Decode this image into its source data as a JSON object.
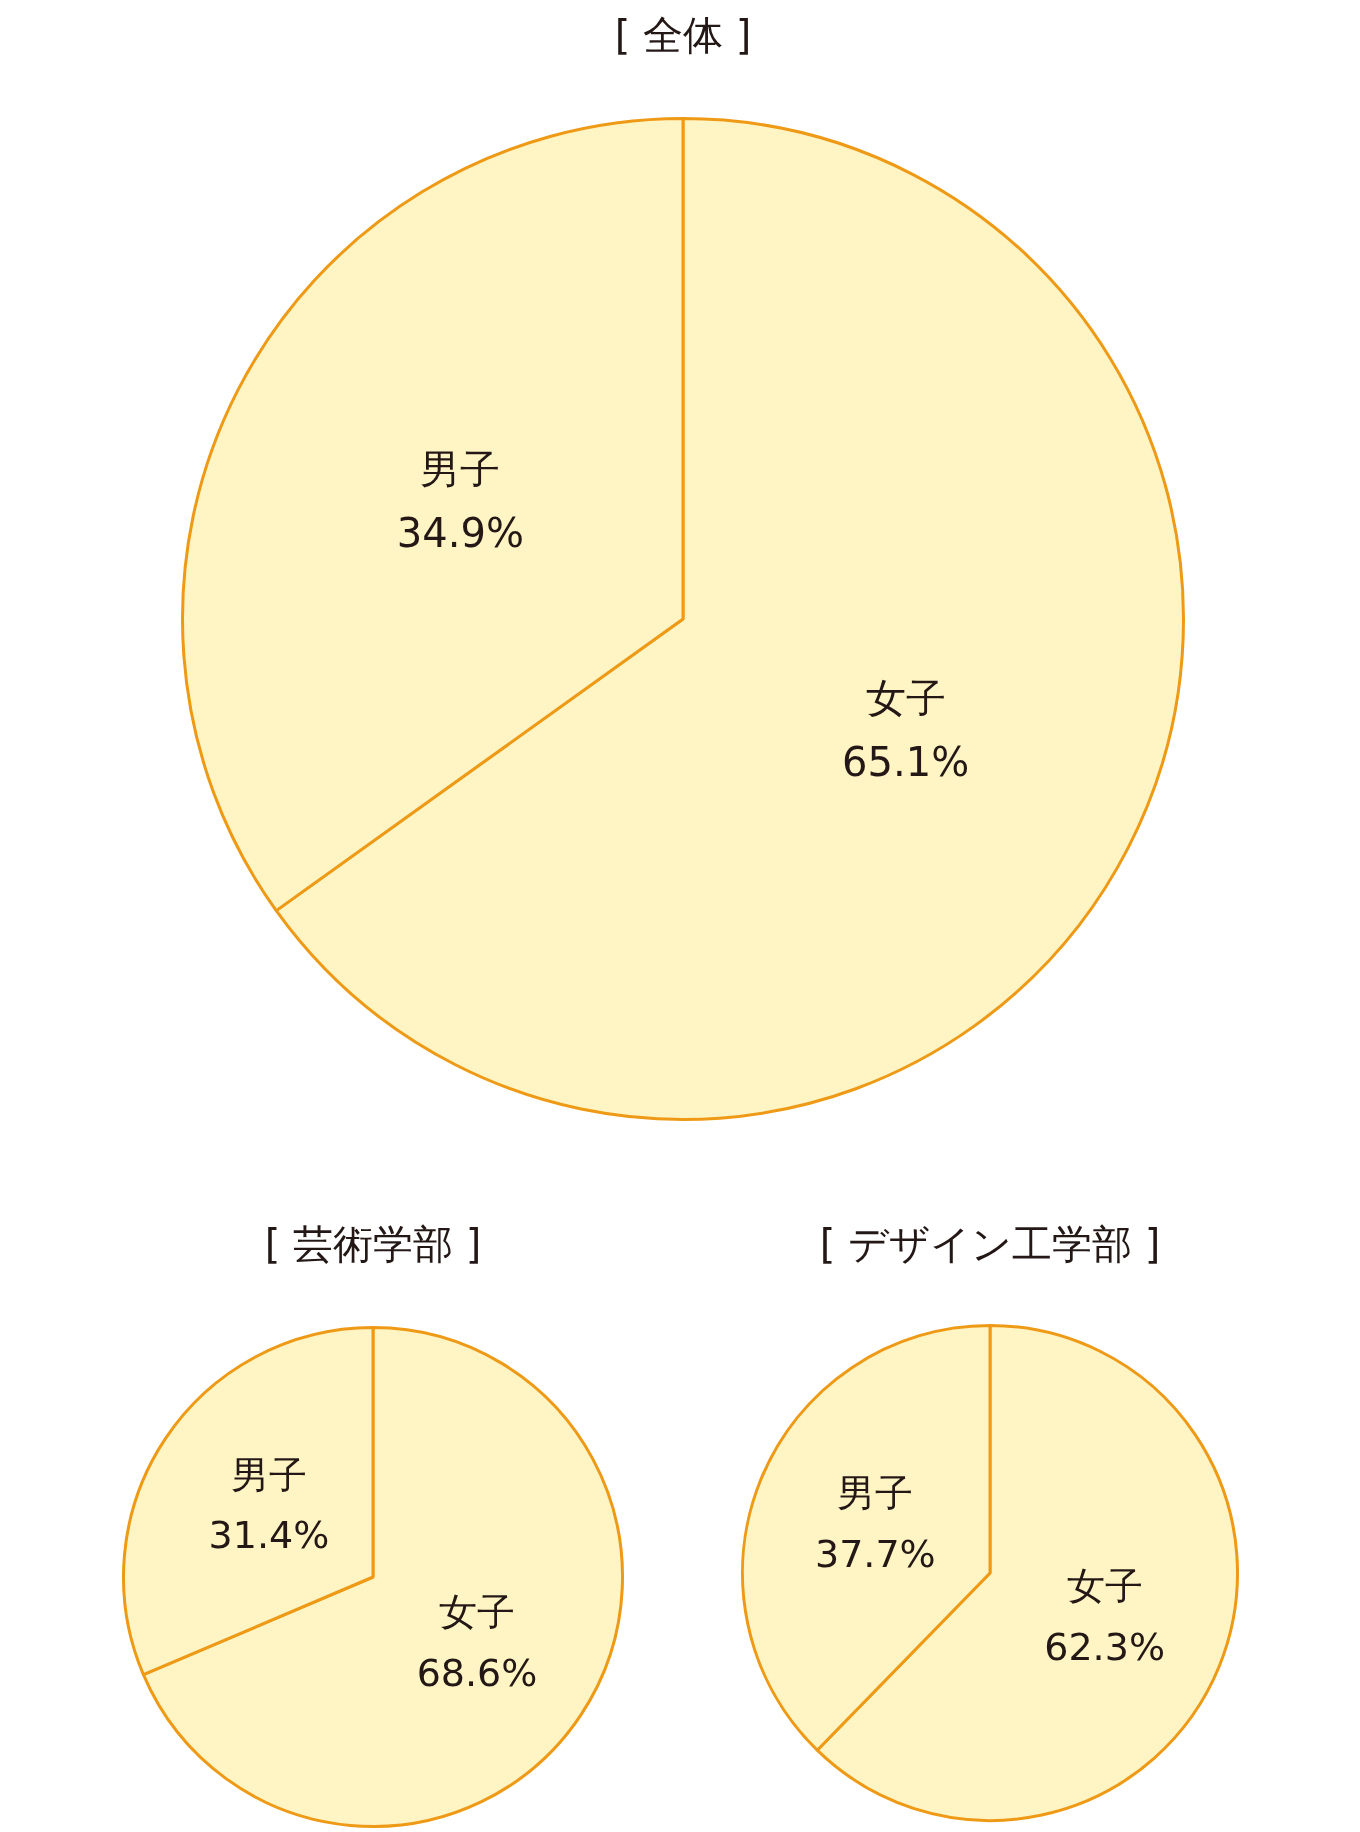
{
  "chart_data": [
    {
      "type": "pie",
      "title": "[ 全体 ]",
      "categories": [
        "女子",
        "男子"
      ],
      "values": [
        65.1,
        34.9
      ],
      "value_labels": [
        "65.1%",
        "34.9%"
      ],
      "colors": [
        "#fff4c4",
        "#fff4c4"
      ],
      "legend": false
    },
    {
      "type": "pie",
      "title": "[ 芸術学部 ]",
      "categories": [
        "女子",
        "男子"
      ],
      "values": [
        68.6,
        31.4
      ],
      "value_labels": [
        "68.6%",
        "31.4%"
      ],
      "colors": [
        "#fff4c4",
        "#fff4c4"
      ],
      "legend": false
    },
    {
      "type": "pie",
      "title": "[ デザイン工学部 ]",
      "categories": [
        "女子",
        "男子"
      ],
      "values": [
        62.3,
        37.7
      ],
      "value_labels": [
        "62.3%",
        "37.7%"
      ],
      "colors": [
        "#fff4c4",
        "#fff4c4"
      ],
      "legend": false
    }
  ]
}
